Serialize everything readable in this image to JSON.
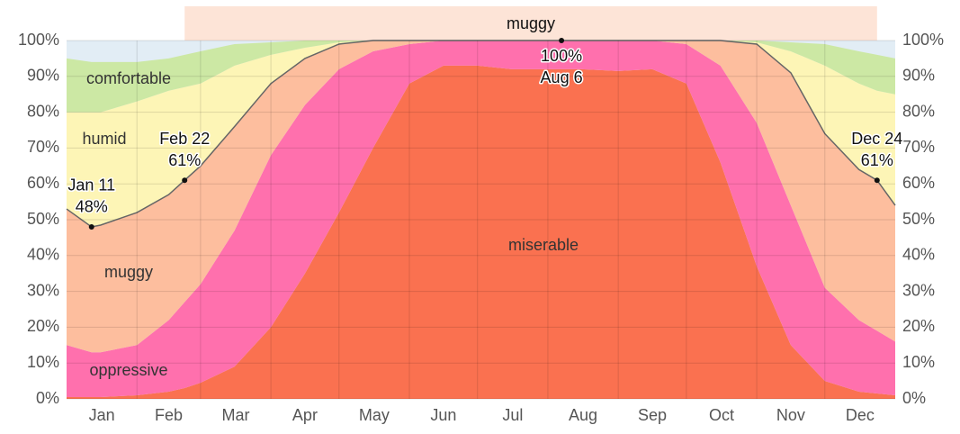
{
  "chart_data": {
    "type": "stacked_area",
    "x": [
      0,
      11,
      15,
      31,
      45,
      52,
      59,
      74,
      90,
      105,
      120,
      135,
      151,
      166,
      181,
      196,
      212,
      218,
      227,
      243,
      258,
      273,
      288,
      304,
      319,
      334,
      349,
      357,
      365
    ],
    "series": [
      {
        "name": "miserable",
        "color": "#fa7150",
        "values": [
          0.5,
          0.5,
          0.5,
          1,
          2,
          3,
          4.5,
          9,
          20,
          35,
          52,
          70,
          88,
          93,
          93,
          92,
          92,
          92,
          92,
          91.5,
          92,
          88,
          66,
          37,
          15,
          5,
          2,
          1.5,
          1
        ]
      },
      {
        "name": "oppressive",
        "color": "#ff70ad",
        "values": [
          14.5,
          12.5,
          12.5,
          14,
          20,
          24,
          27.5,
          38,
          48,
          47,
          40,
          27,
          11,
          7,
          7,
          8,
          8,
          8,
          8,
          8.5,
          8,
          11,
          27,
          40,
          39,
          26,
          20,
          17.5,
          15
        ]
      },
      {
        "name": "muggy",
        "color": "#fdbe9e",
        "values": [
          38,
          35,
          35.5,
          37,
          35,
          34,
          33,
          29,
          20,
          13,
          7,
          3,
          1,
          0,
          0,
          0,
          0,
          0,
          0,
          0,
          0,
          1,
          7,
          22,
          37,
          43,
          42,
          42,
          38
        ]
      },
      {
        "name": "humid",
        "color": "#fdf5b6",
        "values": [
          27,
          32,
          31.5,
          31,
          29,
          26,
          23,
          17,
          8,
          3,
          0.5,
          0,
          0,
          0,
          0,
          0,
          0,
          0,
          0,
          0,
          0,
          0,
          0,
          0.5,
          6,
          19,
          24,
          25,
          31
        ]
      },
      {
        "name": "comfortable",
        "color": "#cce8a4",
        "values": [
          15,
          14,
          14,
          11,
          9,
          9,
          9,
          6,
          3.5,
          2,
          0.5,
          0,
          0,
          0,
          0,
          0,
          0,
          0,
          0,
          0,
          0,
          0,
          0,
          0.5,
          2.5,
          6,
          9,
          10,
          10
        ]
      }
    ],
    "xlim": [
      0,
      365
    ],
    "xticks": [
      {
        "value": 15.5,
        "label": "Jan"
      },
      {
        "value": 45,
        "label": "Feb"
      },
      {
        "value": 74.5,
        "label": "Mar"
      },
      {
        "value": 105,
        "label": "Apr"
      },
      {
        "value": 135.5,
        "label": "May"
      },
      {
        "value": 166,
        "label": "Jun"
      },
      {
        "value": 196.5,
        "label": "Jul"
      },
      {
        "value": 227.5,
        "label": "Aug"
      },
      {
        "value": 258,
        "label": "Sep"
      },
      {
        "value": 288.5,
        "label": "Oct"
      },
      {
        "value": 319,
        "label": "Nov"
      },
      {
        "value": 349.5,
        "label": "Dec"
      }
    ],
    "xgrid": [
      31,
      59,
      90,
      120,
      151,
      181,
      212,
      243,
      273,
      304,
      334
    ],
    "ylim": [
      0,
      100
    ],
    "yticks": [
      {
        "value": 0,
        "label": "0%"
      },
      {
        "value": 10,
        "label": "10%"
      },
      {
        "value": 20,
        "label": "20%"
      },
      {
        "value": 30,
        "label": "30%"
      },
      {
        "value": 40,
        "label": "40%"
      },
      {
        "value": 50,
        "label": "50%"
      },
      {
        "value": 60,
        "label": "60%"
      },
      {
        "value": 70,
        "label": "70%"
      },
      {
        "value": 80,
        "label": "80%"
      },
      {
        "value": 90,
        "label": "90%"
      },
      {
        "value": 100,
        "label": "100%"
      }
    ],
    "grid": true,
    "top_band": {
      "label": "muggy",
      "start": 52,
      "end": 357,
      "color": "#fde4d7"
    },
    "annotations": [
      {
        "x": 11,
        "y": 48,
        "date": "Jan 11",
        "label": "48%"
      },
      {
        "x": 52,
        "y": 61,
        "date": "Feb 22",
        "label": "61%"
      },
      {
        "x": 218,
        "y": 100,
        "date": "Aug 6",
        "label": "100%"
      },
      {
        "x": 357,
        "y": 61,
        "date": "Dec 24",
        "label": "61%"
      }
    ]
  }
}
